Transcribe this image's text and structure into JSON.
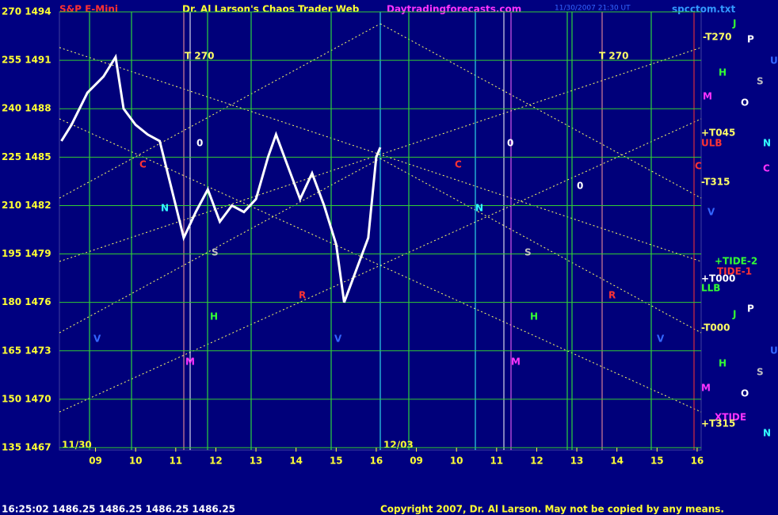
{
  "chart_data": {
    "type": "line",
    "title": "Dr. Al Larson's Chaos Trader Web",
    "symbol": "S&P E-Mini",
    "website": "Daytradingforecasts.com",
    "file": "spcctom.txt",
    "timestamp": "11/30/2007 21:30 UT",
    "status": "16:25:02  1486.25  1486.25  1486.25  1486.25",
    "copyright": "Copyright 2007, Dr. Al Larson. May not be copied by any means.",
    "date_labels": [
      "11/30",
      "12/03"
    ],
    "color": "#ffffff",
    "grid": true,
    "x": [
      8.15,
      8.4,
      8.8,
      9.2,
      9.5,
      9.7,
      10.0,
      10.3,
      10.6,
      10.9,
      11.2,
      11.5,
      11.8,
      12.1,
      12.4,
      12.7,
      13.0,
      13.3,
      13.5,
      13.8,
      14.1,
      14.4,
      14.7,
      15.0,
      15.2,
      15.5,
      15.8,
      16.0,
      16.1
    ],
    "values": [
      230,
      235,
      245,
      250,
      256,
      240,
      235,
      232,
      230,
      215,
      200,
      208,
      215,
      205,
      210,
      208,
      212,
      225,
      232,
      222,
      212,
      220,
      210,
      198,
      180,
      190,
      200,
      225,
      228
    ],
    "xlim": [
      8.1,
      24.1
    ],
    "xticks": [
      {
        "value": 9,
        "label": "09"
      },
      10,
      11,
      12,
      13,
      14,
      15,
      16,
      {
        "value": 17,
        "label": "09"
      },
      {
        "value": 18,
        "label": "10"
      },
      {
        "value": 19,
        "label": "11"
      },
      {
        "value": 20,
        "label": "12"
      },
      {
        "value": 21,
        "label": "13"
      },
      {
        "value": 22,
        "label": "14"
      },
      {
        "value": 23,
        "label": "15"
      },
      {
        "value": 24,
        "label": "16"
      }
    ],
    "ylim": [
      135,
      270
    ],
    "yticks": [
      {
        "value": 270,
        "label": "270 1494"
      },
      {
        "value": 255,
        "label": "255 1491"
      },
      {
        "value": 240,
        "label": "240 1488"
      },
      {
        "value": 225,
        "label": "225 1485"
      },
      {
        "value": 210,
        "label": "210 1482"
      },
      {
        "value": 195,
        "label": "195 1479"
      },
      {
        "value": 180,
        "label": "180 1476"
      },
      {
        "value": 165,
        "label": "165 1473"
      },
      {
        "value": 150,
        "label": "150 1470"
      },
      {
        "value": 135,
        "label": "135 1467"
      }
    ],
    "annotations": [
      {
        "text": "-T270",
        "color": "#ffff66"
      },
      {
        "text": "M",
        "color": "#ff33ff"
      },
      {
        "text": "+T045",
        "color": "#ffff66"
      },
      {
        "text": "ULB",
        "color": "#ff3333"
      },
      {
        "text": "C",
        "color": "#ff3333"
      },
      {
        "text": "-T315",
        "color": "#ffff66"
      },
      {
        "text": "V",
        "color": "#3366ff"
      },
      {
        "text": "+TIDE-2",
        "color": "#33ff33"
      },
      {
        "text": "TIDE-1",
        "color": "#ff3333"
      },
      {
        "text": "+T000",
        "color": "#ffffff"
      },
      {
        "text": "LLB",
        "color": "#33ff33"
      },
      {
        "text": "-T000",
        "color": "#ffff66"
      },
      {
        "text": "M",
        "color": "#ff33ff"
      },
      {
        "text": "XTIDE",
        "color": "#ff33ff"
      },
      {
        "text": "+T315",
        "color": "#ffff66"
      },
      {
        "text": "J",
        "color": "#33ff33"
      },
      {
        "text": "P",
        "color": "#ffffff"
      },
      {
        "text": "U",
        "color": "#3366ff"
      },
      {
        "text": "H",
        "color": "#33ff33"
      },
      {
        "text": "S",
        "color": "#c0c0c0"
      },
      {
        "text": "O",
        "color": "#ffffff"
      },
      {
        "text": "N",
        "color": "#33ffff"
      },
      {
        "text": "C",
        "color": "#ff33ff"
      },
      {
        "text": "J",
        "color": "#33ff33"
      },
      {
        "text": "P",
        "color": "#ffffff"
      },
      {
        "text": "U",
        "color": "#3366ff"
      },
      {
        "text": "H",
        "color": "#33ff33"
      },
      {
        "text": "S",
        "color": "#c0c0c0"
      },
      {
        "text": "O",
        "color": "#ffffff"
      },
      {
        "text": "N",
        "color": "#33ffff"
      },
      {
        "text": "T 270",
        "color": "#ffff66"
      },
      {
        "text": "T 270",
        "color": "#ffff66"
      },
      {
        "text": "0",
        "color": "#ffffff"
      },
      {
        "text": "0",
        "color": "#ffffff"
      },
      {
        "text": "C",
        "color": "#ff3333"
      },
      {
        "text": "C",
        "color": "#ff3333"
      },
      {
        "text": "0",
        "color": "#ffffff"
      },
      {
        "text": "N",
        "color": "#33ffff"
      },
      {
        "text": "N",
        "color": "#33ffff"
      },
      {
        "text": "S",
        "color": "#c0c0c0"
      },
      {
        "text": "S",
        "color": "#c0c0c0"
      },
      {
        "text": "R",
        "color": "#ff3333"
      },
      {
        "text": "R",
        "color": "#ff3333"
      },
      {
        "text": "H",
        "color": "#33ff33"
      },
      {
        "text": "H",
        "color": "#33ff33"
      },
      {
        "text": "V",
        "color": "#3366ff"
      },
      {
        "text": "V",
        "color": "#3366ff"
      },
      {
        "text": "M",
        "color": "#ff33ff"
      },
      {
        "text": "M",
        "color": "#ff33ff"
      },
      {
        "text": "V",
        "color": "#3366ff"
      }
    ]
  }
}
